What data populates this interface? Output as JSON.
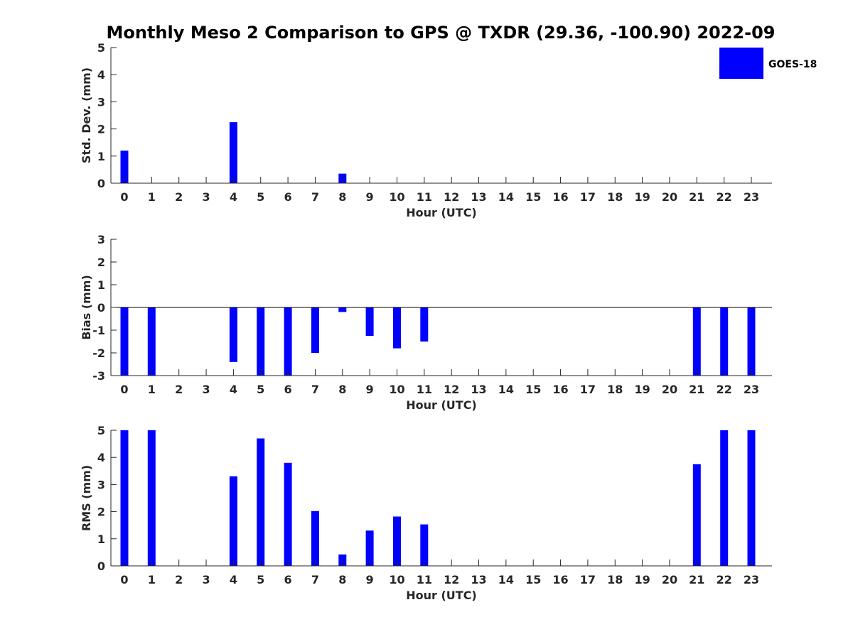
{
  "title": "Monthly Meso 2 Comparison to GPS @ TXDR (29.36, -100.90) 2022-09",
  "legend": {
    "label": "GOES-18",
    "color": "#0000ff",
    "placement": "top-right"
  },
  "chart_data": [
    {
      "type": "bar",
      "xlabel": "Hour (UTC)",
      "ylabel": "Std. Dev. (mm)",
      "ylim": [
        0,
        5
      ],
      "yticks": [
        "0",
        "1",
        "2",
        "3",
        "4",
        "5"
      ],
      "categories": [
        "0",
        "1",
        "2",
        "3",
        "4",
        "5",
        "6",
        "7",
        "8",
        "9",
        "10",
        "11",
        "12",
        "13",
        "14",
        "15",
        "16",
        "17",
        "18",
        "19",
        "20",
        "21",
        "22",
        "23"
      ],
      "series": [
        {
          "name": "GOES-18",
          "color": "#0000ff",
          "values": [
            1.2,
            0,
            0,
            0,
            2.25,
            0,
            0,
            0,
            0.35,
            0,
            0,
            0,
            0,
            0,
            0,
            0,
            0,
            0,
            0,
            0,
            0,
            0,
            0,
            0
          ]
        }
      ],
      "grid": false
    },
    {
      "type": "bar",
      "xlabel": "Hour (UTC)",
      "ylabel": "Bias (mm)",
      "ylim": [
        -3,
        3
      ],
      "yticks": [
        "-3",
        "-2",
        "-1",
        "0",
        "1",
        "2",
        "3"
      ],
      "categories": [
        "0",
        "1",
        "2",
        "3",
        "4",
        "5",
        "6",
        "7",
        "8",
        "9",
        "10",
        "11",
        "12",
        "13",
        "14",
        "15",
        "16",
        "17",
        "18",
        "19",
        "20",
        "21",
        "22",
        "23"
      ],
      "series": [
        {
          "name": "GOES-18",
          "color": "#0000ff",
          "values": [
            -3,
            -3,
            0,
            0,
            -2.4,
            -3,
            -3,
            -2,
            -0.2,
            -1.25,
            -1.8,
            -1.5,
            0,
            0,
            0,
            0,
            0,
            0,
            0,
            0,
            0,
            -3,
            -3,
            -3
          ]
        }
      ],
      "zero_line": true,
      "grid": false
    },
    {
      "type": "bar",
      "xlabel": "Hour (UTC)",
      "ylabel": "RMS (mm)",
      "ylim": [
        0,
        5
      ],
      "yticks": [
        "0",
        "1",
        "2",
        "3",
        "4",
        "5"
      ],
      "categories": [
        "0",
        "1",
        "2",
        "3",
        "4",
        "5",
        "6",
        "7",
        "8",
        "9",
        "10",
        "11",
        "12",
        "13",
        "14",
        "15",
        "16",
        "17",
        "18",
        "19",
        "20",
        "21",
        "22",
        "23"
      ],
      "series": [
        {
          "name": "GOES-18",
          "color": "#0000ff",
          "values": [
            5,
            5,
            0,
            0,
            3.3,
            4.7,
            3.8,
            2.02,
            0.42,
            1.3,
            1.82,
            1.53,
            0,
            0,
            0,
            0,
            0,
            0,
            0,
            0,
            0,
            3.75,
            5,
            5
          ]
        }
      ],
      "grid": false
    }
  ]
}
